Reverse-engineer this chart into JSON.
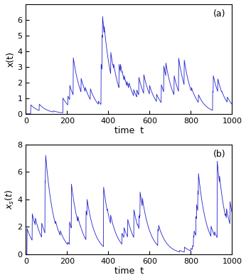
{
  "title_a": "(a)",
  "title_b": "(b)",
  "xlabel": "time  t",
  "ylabel_a": "x(t)",
  "ylabel_b": "x_s(t)",
  "xlim": [
    0,
    1000
  ],
  "ylim_a": [
    0,
    7
  ],
  "ylim_b": [
    0,
    8
  ],
  "xticks": [
    0,
    200,
    400,
    600,
    800,
    1000
  ],
  "yticks_a": [
    0,
    1,
    2,
    3,
    4,
    5,
    6
  ],
  "yticks_b": [
    0,
    2,
    4,
    6,
    8
  ],
  "line_color": "#2222CC",
  "line_width": 0.6,
  "seed_a": 7,
  "seed_b": 99,
  "n_points": 1000,
  "background_color": "#ffffff",
  "figsize": [
    3.46,
    3.93
  ],
  "dpi": 100
}
